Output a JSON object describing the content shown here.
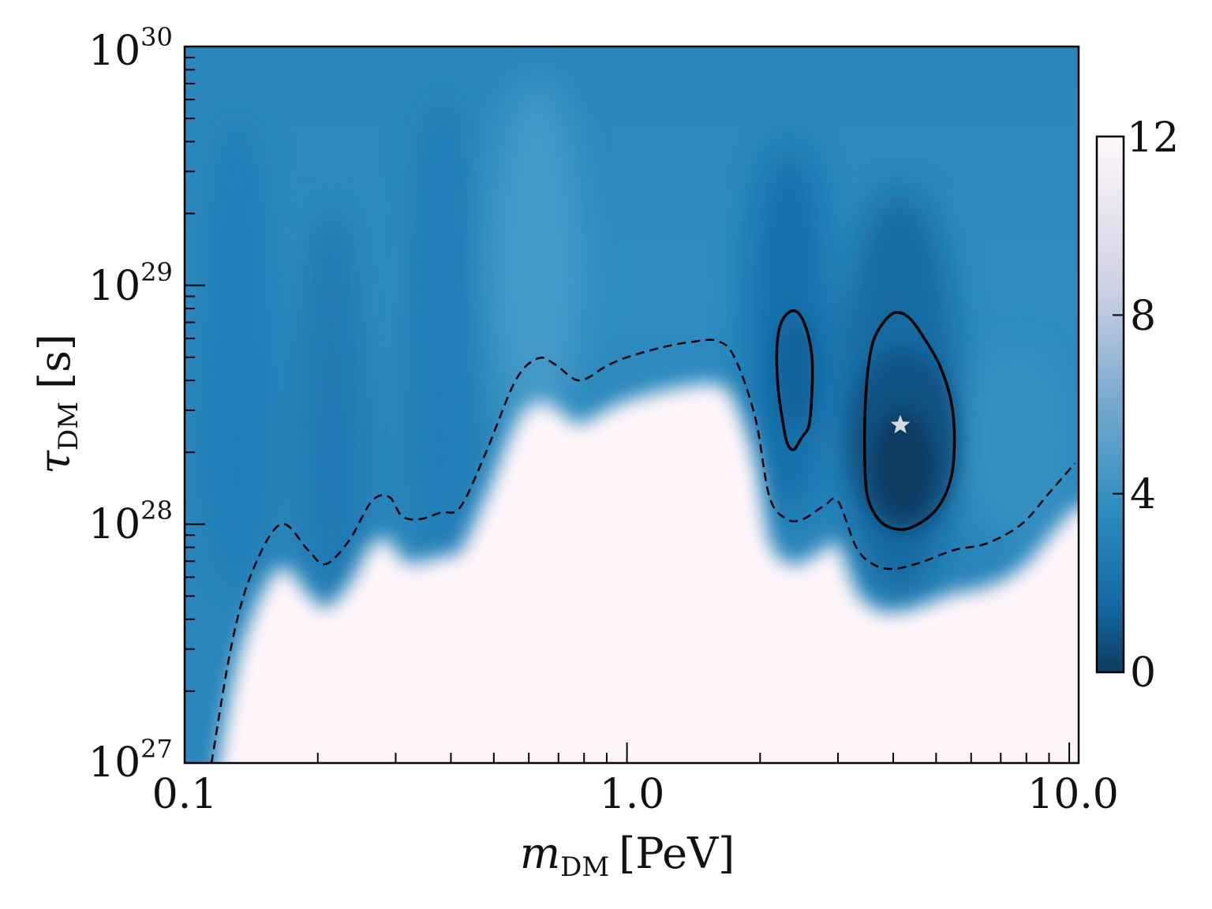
{
  "chart_data": {
    "type": "heatmap",
    "title": "",
    "xlabel": {
      "symbol": "m",
      "subscript": "DM",
      "unit": "[PeV]"
    },
    "ylabel": {
      "symbol": "τ",
      "subscript": "DM",
      "unit": "[s]"
    },
    "x_scale": "log",
    "y_scale": "log",
    "xlim": [
      0.1,
      10.5
    ],
    "ylim": [
      1e+27,
      1e+30
    ],
    "x_ticks": [
      {
        "value": 0.1,
        "label": "0.1"
      },
      {
        "value": 1.0,
        "label": "1.0"
      },
      {
        "value": 10.0,
        "label": "10.0"
      }
    ],
    "y_ticks": [
      {
        "value": 1e+27,
        "base": "10",
        "exp": "27"
      },
      {
        "value": 1e+28,
        "base": "10",
        "exp": "28"
      },
      {
        "value": 1e+29,
        "base": "10",
        "exp": "29"
      },
      {
        "value": 1e+30,
        "base": "10",
        "exp": "30"
      }
    ],
    "colorbar": {
      "range": [
        0,
        12
      ],
      "ticks": [
        {
          "value": 0,
          "label": "0"
        },
        {
          "value": 4,
          "label": "4"
        },
        {
          "value": 8,
          "label": "8"
        },
        {
          "value": 12,
          "label": "12"
        }
      ],
      "colors": [
        "#0b3c5d",
        "#1467a2",
        "#2b8cbe",
        "#74a9cf",
        "#d0d1e6",
        "#fff7fb"
      ]
    },
    "exclusion_boundary": {
      "style": "dashed",
      "color": "#000000",
      "points": [
        [
          0.115,
          1e+27
        ],
        [
          0.128,
          3.2e+27
        ],
        [
          0.142,
          6.3e+27
        ],
        [
          0.165,
          1e+28
        ],
        [
          0.19,
          7.8e+27
        ],
        [
          0.208,
          6.8e+27
        ],
        [
          0.235,
          8.5e+27
        ],
        [
          0.265,
          1.25e+28
        ],
        [
          0.29,
          1.3e+28
        ],
        [
          0.31,
          1.08e+28
        ],
        [
          0.34,
          1.05e+28
        ],
        [
          0.38,
          1.12e+28
        ],
        [
          0.42,
          1.18e+28
        ],
        [
          0.48,
          2e+28
        ],
        [
          0.56,
          4e+28
        ],
        [
          0.63,
          4.95e+28
        ],
        [
          0.69,
          4.65e+28
        ],
        [
          0.78,
          4e+28
        ],
        [
          0.9,
          4.6e+28
        ],
        [
          1.0,
          5e+28
        ],
        [
          1.2,
          5.5e+28
        ],
        [
          1.4,
          5.8e+28
        ],
        [
          1.6,
          5.85e+28
        ],
        [
          1.75,
          5e+28
        ],
        [
          1.95,
          2.8e+28
        ],
        [
          2.1,
          1.3e+28
        ],
        [
          2.3,
          1.05e+28
        ],
        [
          2.5,
          1.05e+28
        ],
        [
          2.8,
          1.2e+28
        ],
        [
          3.0,
          1.25e+28
        ],
        [
          3.3,
          8e+27
        ],
        [
          3.6,
          6.8e+27
        ],
        [
          4.0,
          6.5e+27
        ],
        [
          4.6,
          6.9e+27
        ],
        [
          5.5,
          7.8e+27
        ],
        [
          6.5,
          8.3e+27
        ],
        [
          7.8,
          1e+28
        ],
        [
          9.0,
          1.35e+28
        ],
        [
          10.3,
          1.8e+28
        ]
      ]
    },
    "confidence_contours": [
      {
        "name": "contour-left",
        "points": [
          [
            2.25,
            7.2e+28
          ],
          [
            2.35,
            7.8e+28
          ],
          [
            2.45,
            7.6e+28
          ],
          [
            2.55,
            6.5e+28
          ],
          [
            2.62,
            5e+28
          ],
          [
            2.62,
            3.6e+28
          ],
          [
            2.58,
            2.6e+28
          ],
          [
            2.48,
            2.3e+28
          ],
          [
            2.38,
            2.05e+28
          ],
          [
            2.3,
            2.2e+28
          ],
          [
            2.25,
            2.7e+28
          ],
          [
            2.2,
            3.6e+28
          ],
          [
            2.18,
            5e+28
          ],
          [
            2.2,
            6.3e+28
          ]
        ]
      },
      {
        "name": "contour-right",
        "points": [
          [
            3.6,
            5.8e+28
          ],
          [
            3.8,
            7e+28
          ],
          [
            4.05,
            7.7e+28
          ],
          [
            4.35,
            7.3e+28
          ],
          [
            4.7,
            6e+28
          ],
          [
            5.1,
            4.6e+28
          ],
          [
            5.4,
            3.3e+28
          ],
          [
            5.5,
            2.3e+28
          ],
          [
            5.4,
            1.55e+28
          ],
          [
            5.0,
            1.15e+28
          ],
          [
            4.4,
            9.7e+27
          ],
          [
            4.0,
            9.6e+27
          ],
          [
            3.7,
            1.05e+28
          ],
          [
            3.5,
            1.3e+28
          ],
          [
            3.45,
            1.8e+28
          ],
          [
            3.45,
            2.8e+28
          ],
          [
            3.5,
            4.3e+28
          ]
        ]
      }
    ],
    "best_fit": {
      "x": 4.15,
      "y": 2.6e+28,
      "marker": "star",
      "color": "#d9d9d9"
    }
  }
}
